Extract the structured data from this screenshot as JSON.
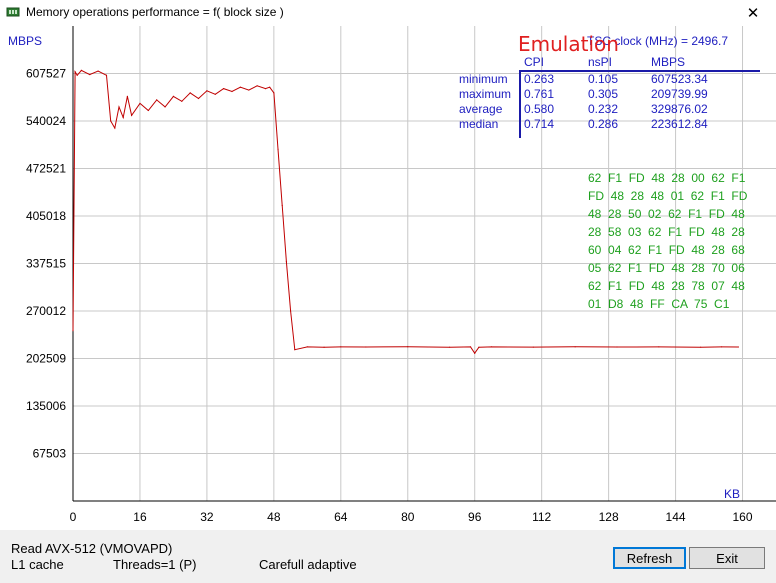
{
  "window": {
    "title": "Memory operations performance = f( block size )",
    "close_glyph": "✕"
  },
  "overlay": {
    "emulation": "Emulation",
    "tsc": "TSC clock (MHz)  = 2496.7",
    "stats_headers": [
      "CPI",
      "nsPI",
      "MBPS"
    ],
    "stats_rows": [
      {
        "label": "minimum",
        "cpi": "0.263",
        "nspi": "0.105",
        "mbps": "607523.34"
      },
      {
        "label": "maximum",
        "cpi": "0.761",
        "nspi": "0.305",
        "mbps": "209739.99"
      },
      {
        "label": "average",
        "cpi": "0.580",
        "nspi": "0.232",
        "mbps": "329876.02"
      },
      {
        "label": "median",
        "cpi": "0.714",
        "nspi": "0.286",
        "mbps": "223612.84"
      }
    ],
    "hex_dump": [
      "62  F1  FD  48  28  00  62  F1",
      "FD  48  28  48  01  62  F1  FD",
      "48  28  50  02  62  F1  FD  48",
      "28  58  03  62  F1  FD  48  28",
      "60  04  62  F1  FD  48  28  68",
      "05  62  F1  FD  48  28  70  06",
      "62  F1  FD  48  28  78  07  48",
      "01  D8  48  FF  CA  75  C1"
    ]
  },
  "colors": {
    "line": "#c00000",
    "grid": "#c8c8c8",
    "axis": "#000000",
    "label_blue": "#2020c0",
    "hex_green": "#1ea01e",
    "stats_rule": "#1a1aa8",
    "emulation_red": "#e02020"
  },
  "chart_data": {
    "type": "line",
    "ylabel": "MBPS",
    "xlabel": "KB",
    "y_ticks": [
      67503,
      135006,
      202509,
      270012,
      337515,
      405018,
      472521,
      540024,
      607527
    ],
    "x_ticks": [
      0,
      16,
      32,
      48,
      64,
      80,
      96,
      112,
      128,
      144,
      160
    ],
    "xlim": [
      0,
      168
    ],
    "ylim": [
      0,
      675030
    ],
    "grid": true,
    "series": [
      {
        "name": "",
        "x": [
          0,
          0.5,
          1,
          2,
          4,
          6,
          8,
          9,
          10,
          11,
          12,
          13,
          14,
          16,
          18,
          20,
          22,
          24,
          26,
          28,
          30,
          32,
          34,
          36,
          38,
          40,
          42,
          44,
          46,
          47,
          48,
          49,
          50,
          51,
          52,
          53,
          56,
          60,
          64,
          70,
          80,
          90,
          95,
          96,
          97,
          100,
          110,
          120,
          130,
          140,
          150,
          155,
          159
        ],
        "y": [
          242000,
          610000,
          605000,
          612000,
          606000,
          611000,
          605000,
          540000,
          530000,
          560000,
          545000,
          575000,
          548000,
          565000,
          555000,
          570000,
          560000,
          575000,
          568000,
          580000,
          572000,
          583000,
          578000,
          586000,
          582000,
          588000,
          584000,
          590000,
          586000,
          588000,
          580000,
          500000,
          420000,
          340000,
          270000,
          215000,
          219000,
          218500,
          219000,
          218800,
          219200,
          218600,
          219000,
          210000,
          218500,
          219000,
          218700,
          219100,
          218800,
          219000,
          218600,
          219000,
          218800
        ]
      }
    ]
  },
  "status": {
    "operation": "Read AVX-512 (VMOVAPD)",
    "cache": "L1 cache",
    "threads": "Threads=1 (P)",
    "mode": "Carefull adaptive"
  },
  "buttons": {
    "refresh": "Refresh",
    "exit": "Exit"
  }
}
